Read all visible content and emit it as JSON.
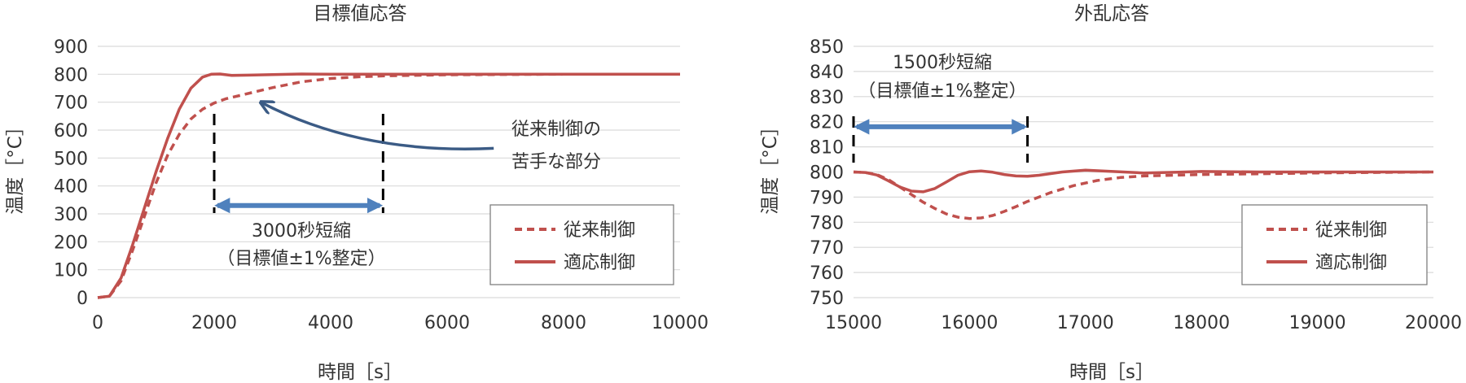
{
  "colors": {
    "series": "#c0504d",
    "grid": "#d9d9d9",
    "arrow_blue": "#4f81bd",
    "arrow_navy": "#3b5b85",
    "axis_text": "#333333"
  },
  "chart_data": [
    {
      "type": "line",
      "title": "目標値応答",
      "xlabel": "時間［s］",
      "ylabel": "温度［°C］",
      "xlim": [
        0,
        10000
      ],
      "ylim": [
        0,
        900
      ],
      "xticks": [
        0,
        2000,
        4000,
        6000,
        8000,
        10000
      ],
      "yticks": [
        0,
        100,
        200,
        300,
        400,
        500,
        600,
        700,
        800,
        900
      ],
      "grid": true,
      "legend_position": "bottom-right",
      "series": [
        {
          "name": "従来制御",
          "style": "dashed",
          "x": [
            0,
            200,
            400,
            600,
            800,
            1000,
            1200,
            1400,
            1600,
            1800,
            2000,
            2200,
            2500,
            3000,
            3500,
            4000,
            4500,
            5000,
            6000,
            8000,
            10000
          ],
          "y": [
            0,
            5,
            60,
            170,
            290,
            410,
            510,
            585,
            640,
            675,
            697,
            712,
            727,
            752,
            773,
            785,
            791,
            795,
            798,
            800,
            800
          ]
        },
        {
          "name": "適応制御",
          "style": "solid",
          "x": [
            0,
            200,
            400,
            600,
            800,
            1000,
            1200,
            1400,
            1600,
            1800,
            1950,
            2100,
            2300,
            2600,
            3000,
            3500,
            4000,
            5000,
            6000,
            8000,
            10000
          ],
          "y": [
            0,
            5,
            70,
            190,
            320,
            450,
            570,
            675,
            750,
            790,
            800,
            801,
            796,
            797,
            799,
            801,
            800,
            800,
            800,
            800,
            800
          ]
        }
      ],
      "annotations": {
        "callout_line1": "従来制御の",
        "callout_line2": "苦手な部分",
        "span_label": "3000秒短縮",
        "span_sublabel": "（目標値±1%整定）",
        "span_start_x": 2000,
        "span_end_x": 4900,
        "span_arrow_y": 330,
        "callout_tail": [
          6800,
          535
        ],
        "callout_head": [
          2800,
          700
        ]
      }
    },
    {
      "type": "line",
      "title": "外乱応答",
      "xlabel": "時間［s］",
      "ylabel": "温度［°C］",
      "xlim": [
        15000,
        20000
      ],
      "ylim": [
        750,
        850
      ],
      "xticks": [
        15000,
        16000,
        17000,
        18000,
        19000,
        20000
      ],
      "yticks": [
        750,
        760,
        770,
        780,
        790,
        800,
        810,
        820,
        830,
        840,
        850
      ],
      "grid": true,
      "legend_position": "bottom-right",
      "series": [
        {
          "name": "従来制御",
          "style": "dashed",
          "x": [
            15000,
            15100,
            15200,
            15300,
            15400,
            15500,
            15600,
            15700,
            15800,
            15900,
            16000,
            16100,
            16200,
            16300,
            16400,
            16500,
            16700,
            16900,
            17100,
            17300,
            17500,
            18000,
            18500,
            19000,
            19500,
            20000
          ],
          "y": [
            800,
            799.8,
            799,
            797,
            794,
            791,
            788,
            785.5,
            783.3,
            782,
            781.5,
            781.7,
            782.7,
            784.3,
            786.2,
            788.3,
            791.8,
            794.6,
            796.6,
            797.8,
            798.4,
            799,
            799.3,
            799.6,
            799.8,
            800
          ]
        },
        {
          "name": "適応制御",
          "style": "solid",
          "x": [
            15000,
            15100,
            15200,
            15300,
            15400,
            15500,
            15600,
            15700,
            15800,
            15900,
            16000,
            16100,
            16200,
            16300,
            16400,
            16500,
            16600,
            16800,
            17000,
            17200,
            17500,
            17800,
            18000,
            18500,
            19000,
            20000
          ],
          "y": [
            800,
            799.8,
            798.8,
            796.5,
            794,
            792.4,
            792.1,
            793.4,
            796,
            798.7,
            800.1,
            800.4,
            799.9,
            799,
            798.4,
            798.3,
            798.7,
            800,
            800.7,
            800.3,
            799.6,
            799.9,
            800.2,
            800,
            800,
            800
          ]
        }
      ],
      "annotations": {
        "span_label": "1500秒短縮",
        "span_sublabel": "（目標値±1%整定）",
        "span_start_x": 15000,
        "span_end_x": 16500,
        "span_arrow_y": 818
      }
    }
  ]
}
